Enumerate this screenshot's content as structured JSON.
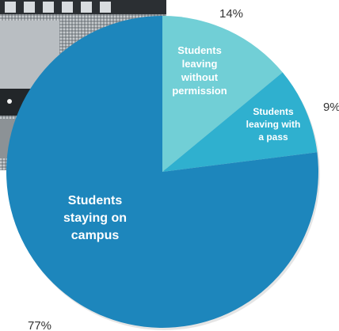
{
  "chart_data": {
    "type": "pie",
    "title": "",
    "slices": [
      {
        "label": "Students leaving without permission",
        "label_lines": [
          "Students",
          "leaving",
          "without",
          "permission"
        ],
        "value": 14,
        "value_label": "14%",
        "color": "#71cfd6"
      },
      {
        "label": "Students leaving with a pass",
        "label_lines": [
          "Students",
          "leaving with",
          "a pass"
        ],
        "value": 9,
        "value_label": "9%",
        "color": "#2fb0cf"
      },
      {
        "label": "Students staying on campus",
        "label_lines": [
          "Students",
          "staying on",
          "campus"
        ],
        "value": 77,
        "value_label": "77%",
        "color": "#1d86bc"
      }
    ]
  }
}
